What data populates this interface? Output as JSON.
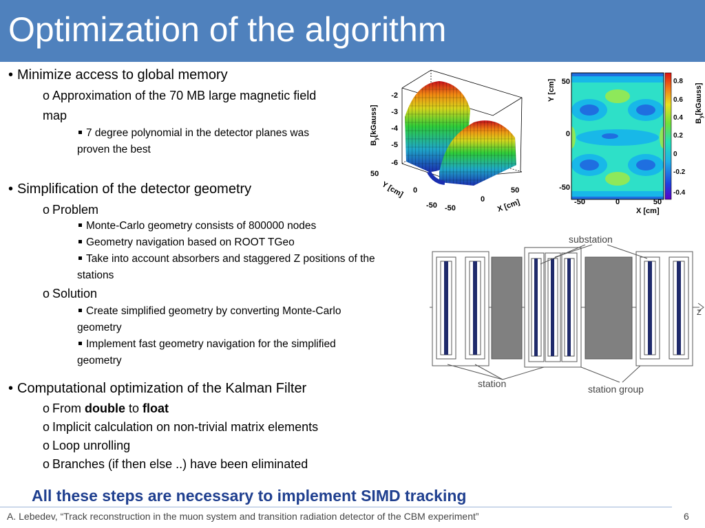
{
  "slide": {
    "title": "Optimization of the algorithm",
    "conclusion": "All these steps are necessary to implement SIMD tracking",
    "footer": "A. Lebedev, “Track reconstruction in the muon system  and transition radiation detector of the CBM experiment”",
    "page_number": "6"
  },
  "sections": [
    {
      "text": "Minimize access to global memory",
      "sub": {
        "text_line1": "Approximation of the 70 MB large magnetic field",
        "text_line2": "map",
        "items": [
          {
            "line1": "7 degree polynomial in the detector planes was",
            "line2": "proven the best"
          }
        ]
      }
    },
    {
      "text": "Simplification of the detector geometry",
      "problem": {
        "text": "Problem",
        "items": [
          "Monte-Carlo geometry consists of 800000 nodes",
          "Geometry navigation based on ROOT TGeo",
          {
            "line1": "Take into account absorbers and staggered Z positions of the",
            "line2": "stations"
          }
        ]
      },
      "solution": {
        "text": "Solution",
        "items": [
          {
            "line1": "Create simplified geometry by converting Monte-Carlo",
            "line2": "geometry"
          },
          {
            "line1": "Implement fast geometry navigation for the simplified",
            "line2": "geometry"
          }
        ]
      }
    },
    {
      "text": "Computational optimization of the Kalman Filter",
      "items": [
        {
          "prefix": "From ",
          "bold1": "double",
          "mid": " to ",
          "bold2": "float"
        },
        "Implicit calculation on non-trivial matrix elements",
        "Loop unrolling",
        "Branches (if then else ..) have been eliminated"
      ]
    }
  ],
  "figure_3d": {
    "z_ticks": [
      "-2",
      "-3",
      "-4",
      "-5",
      "-6"
    ],
    "z_label": "B",
    "z_label_sub": "y",
    "z_label_unit": "[kGauss]",
    "y_ticks": [
      "50",
      "0",
      "-50"
    ],
    "y_label": "Y [cm]",
    "x_ticks": [
      "-50",
      "0",
      "50"
    ],
    "x_label": "X [cm]"
  },
  "figure_heatmap": {
    "y_label": "Y [cm]",
    "y_ticks": [
      "50",
      "0",
      "-50"
    ],
    "x_label": "X [cm]",
    "x_ticks": [
      "-50",
      "0",
      "50"
    ],
    "colorbar_ticks": [
      "0.8",
      "0.6",
      "0.4",
      "0.2",
      "0",
      "-0.2",
      "-0.4"
    ],
    "colorbar_label": "B",
    "colorbar_label_sub": "y",
    "colorbar_label_unit": "[kGauss]"
  },
  "figure_geometry": {
    "label_substation": "substation",
    "label_station": "station",
    "label_station_group": "station group",
    "axis_label": "Z"
  },
  "colors": {
    "title_bar": "#4f81bd",
    "conclusion": "#1f3f8f",
    "absorber": "#808080",
    "detector_plane": "#1f2a6b"
  }
}
